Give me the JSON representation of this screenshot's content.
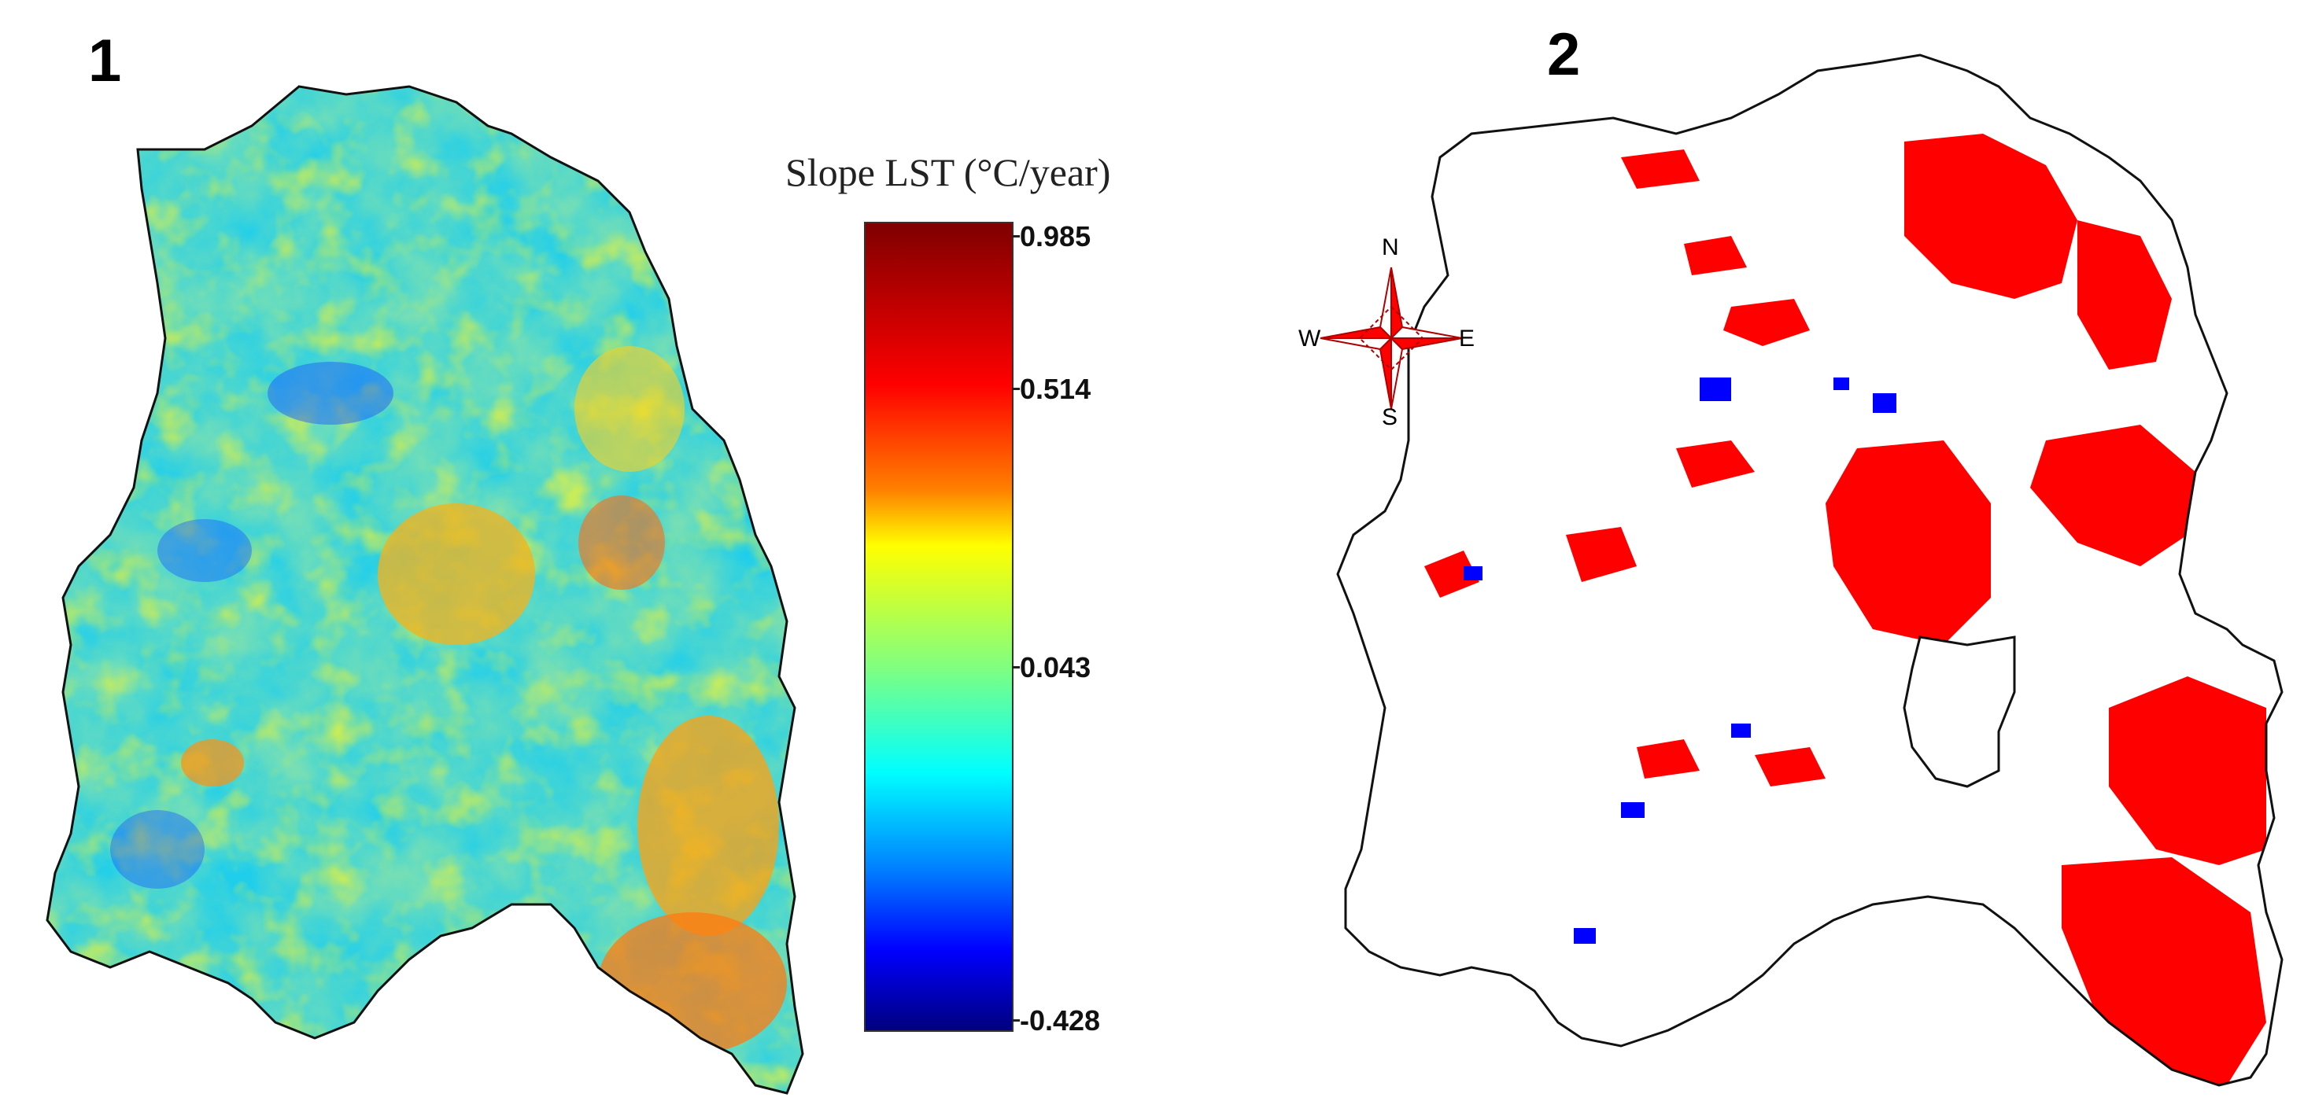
{
  "panels": [
    {
      "label": "1"
    },
    {
      "label": "2"
    }
  ],
  "legend": {
    "title": "Slope LST (°C/year)",
    "ticks": [
      "0.985",
      "0.514",
      "0.043",
      "-0.428"
    ],
    "colormap": [
      "#7f0000",
      "#ff0000",
      "#ff8000",
      "#ffff00",
      "#80ff80",
      "#00ffff",
      "#0080ff",
      "#0000ff",
      "#00007f"
    ]
  },
  "compass": {
    "n": "N",
    "s": "S",
    "e": "E",
    "w": "W",
    "color": "#ff0000"
  },
  "panel2_colors": {
    "increase": "#ff0000",
    "decrease": "#0000ff"
  }
}
